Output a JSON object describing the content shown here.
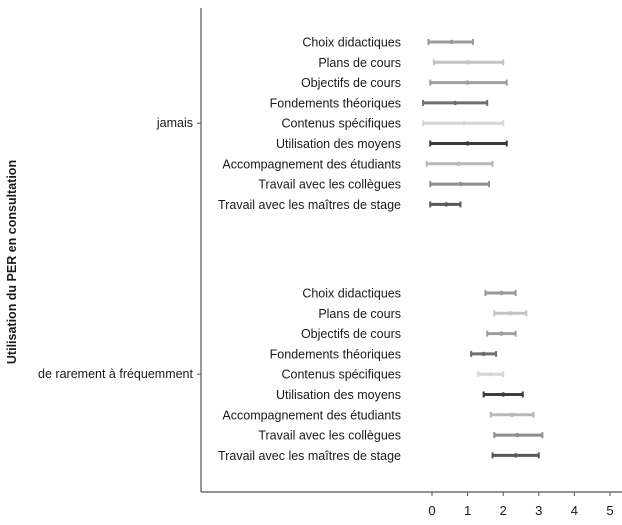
{
  "chart_data": {
    "type": "errorbar",
    "ylabel": "Utilisation du PER en consultation",
    "xlabel": "",
    "xlim": [
      0,
      5
    ],
    "x_ticks": [
      "0",
      "1",
      "2",
      "3",
      "4",
      "5"
    ],
    "groups": [
      {
        "name": "jamais",
        "items": [
          {
            "label": "Choix didactiques",
            "low": -0.1,
            "mean": 0.55,
            "high": 1.15,
            "color": "#9a9a9a"
          },
          {
            "label": "Plans de cours",
            "low": 0.05,
            "mean": 1.0,
            "high": 2.0,
            "color": "#c3c3c3"
          },
          {
            "label": "Objectifs de cours",
            "low": -0.05,
            "mean": 1.0,
            "high": 2.1,
            "color": "#9f9f9f"
          },
          {
            "label": "Fondements théoriques",
            "low": -0.25,
            "mean": 0.65,
            "high": 1.55,
            "color": "#6e6e6e"
          },
          {
            "label": "Contenus spécifiques",
            "low": -0.25,
            "mean": 0.9,
            "high": 2.0,
            "color": "#d6d6d6"
          },
          {
            "label": "Utilisation des moyens",
            "low": -0.05,
            "mean": 1.0,
            "high": 2.1,
            "color": "#3c3c3c"
          },
          {
            "label": "Accompagnement des étudiants",
            "low": -0.15,
            "mean": 0.75,
            "high": 1.7,
            "color": "#b9b9b9"
          },
          {
            "label": "Travail avec les collègues",
            "low": -0.05,
            "mean": 0.8,
            "high": 1.6,
            "color": "#8e8e8e"
          },
          {
            "label": "Travail avec les maîtres de stage",
            "low": -0.05,
            "mean": 0.4,
            "high": 0.8,
            "color": "#585858"
          }
        ]
      },
      {
        "name": "de rarement à fréquemment",
        "items": [
          {
            "label": "Choix didactiques",
            "low": 1.5,
            "mean": 1.95,
            "high": 2.35,
            "color": "#9a9a9a"
          },
          {
            "label": "Plans de cours",
            "low": 1.75,
            "mean": 2.2,
            "high": 2.65,
            "color": "#c3c3c3"
          },
          {
            "label": "Objectifs de cours",
            "low": 1.55,
            "mean": 1.95,
            "high": 2.35,
            "color": "#9f9f9f"
          },
          {
            "label": "Fondements théoriques",
            "low": 1.1,
            "mean": 1.45,
            "high": 1.8,
            "color": "#6e6e6e"
          },
          {
            "label": "Contenus spécifiques",
            "low": 1.3,
            "mean": 1.65,
            "high": 2.0,
            "color": "#d6d6d6"
          },
          {
            "label": "Utilisation des moyens",
            "low": 1.45,
            "mean": 2.0,
            "high": 2.55,
            "color": "#3c3c3c"
          },
          {
            "label": "Accompagnement des étudiants",
            "low": 1.65,
            "mean": 2.25,
            "high": 2.85,
            "color": "#b9b9b9"
          },
          {
            "label": "Travail avec les collègues",
            "low": 1.75,
            "mean": 2.4,
            "high": 3.1,
            "color": "#8e8e8e"
          },
          {
            "label": "Travail avec les maîtres de stage",
            "low": 1.7,
            "mean": 2.35,
            "high": 3.0,
            "color": "#585858"
          }
        ]
      }
    ]
  }
}
